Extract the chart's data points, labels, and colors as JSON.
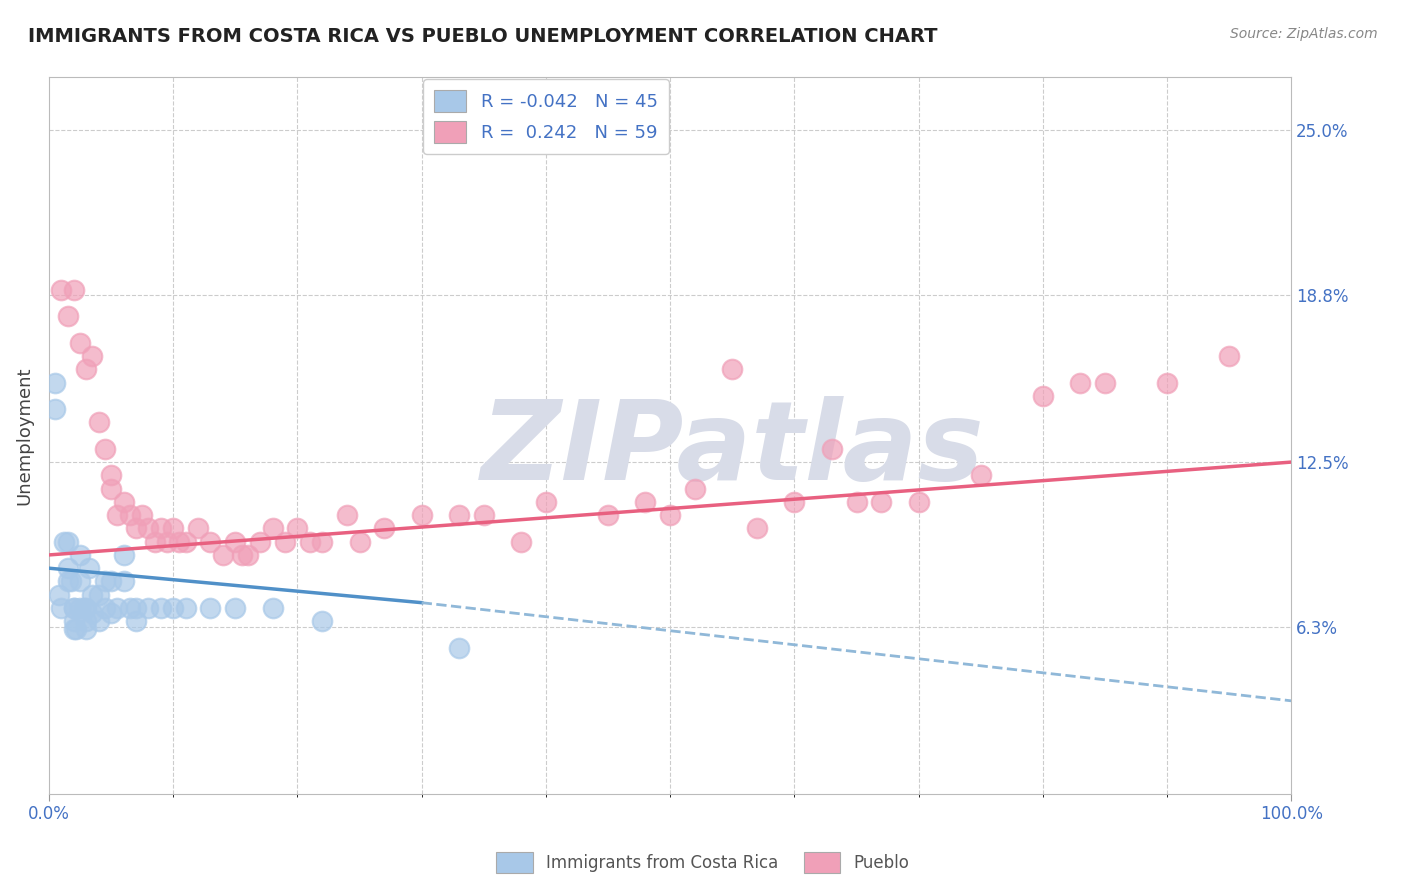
{
  "title": "IMMIGRANTS FROM COSTA RICA VS PUEBLO UNEMPLOYMENT CORRELATION CHART",
  "source_text": "Source: ZipAtlas.com",
  "ylabel": "Unemployment",
  "xlim": [
    0,
    100
  ],
  "ylim": [
    0,
    27
  ],
  "yticks": [
    6.3,
    12.5,
    18.8,
    25.0
  ],
  "ytick_labels": [
    "6.3%",
    "12.5%",
    "18.8%",
    "25.0%"
  ],
  "legend_R1": "R = -0.042",
  "legend_N1": "N = 45",
  "legend_R2": "R =  0.242",
  "legend_N2": "N = 59",
  "legend_label1": "Immigrants from Costa Rica",
  "legend_label2": "Pueblo",
  "color_blue": "#a8c8e8",
  "color_pink": "#f0a0b8",
  "line_blue_solid": "#5090c8",
  "line_blue_dash": "#90b8d8",
  "line_pink": "#e86080",
  "watermark": "ZIPatlas",
  "watermark_color": "#d8dce8",
  "background_color": "#ffffff",
  "grid_color": "#cccccc",
  "blue_points_x": [
    0.5,
    0.5,
    0.8,
    1.0,
    1.2,
    1.5,
    1.5,
    1.5,
    1.8,
    2.0,
    2.0,
    2.0,
    2.0,
    2.2,
    2.5,
    2.5,
    2.5,
    2.8,
    3.0,
    3.0,
    3.0,
    3.2,
    3.5,
    3.5,
    4.0,
    4.0,
    4.5,
    4.5,
    5.0,
    5.0,
    5.5,
    6.0,
    6.0,
    6.5,
    7.0,
    7.0,
    8.0,
    9.0,
    10.0,
    11.0,
    13.0,
    15.0,
    18.0,
    22.0,
    33.0
  ],
  "blue_points_y": [
    15.5,
    14.5,
    7.5,
    7.0,
    9.5,
    9.5,
    8.5,
    8.0,
    8.0,
    7.0,
    7.0,
    6.5,
    6.2,
    6.2,
    9.0,
    8.0,
    7.0,
    7.0,
    7.0,
    6.5,
    6.2,
    8.5,
    7.5,
    6.8,
    7.5,
    6.5,
    8.0,
    7.0,
    8.0,
    6.8,
    7.0,
    9.0,
    8.0,
    7.0,
    7.0,
    6.5,
    7.0,
    7.0,
    7.0,
    7.0,
    7.0,
    7.0,
    7.0,
    6.5,
    5.5
  ],
  "pink_points_x": [
    1.0,
    1.5,
    2.0,
    2.5,
    3.0,
    3.5,
    4.0,
    4.5,
    5.0,
    5.0,
    5.5,
    6.0,
    6.5,
    7.0,
    7.5,
    8.0,
    8.5,
    9.0,
    9.5,
    10.0,
    10.5,
    11.0,
    12.0,
    13.0,
    14.0,
    15.0,
    15.5,
    16.0,
    17.0,
    18.0,
    19.0,
    20.0,
    21.0,
    22.0,
    24.0,
    25.0,
    27.0,
    30.0,
    33.0,
    35.0,
    38.0,
    40.0,
    45.0,
    48.0,
    50.0,
    52.0,
    55.0,
    57.0,
    60.0,
    63.0,
    65.0,
    67.0,
    70.0,
    75.0,
    80.0,
    83.0,
    85.0,
    90.0,
    95.0
  ],
  "pink_points_y": [
    19.0,
    18.0,
    19.0,
    17.0,
    16.0,
    16.5,
    14.0,
    13.0,
    12.0,
    11.5,
    10.5,
    11.0,
    10.5,
    10.0,
    10.5,
    10.0,
    9.5,
    10.0,
    9.5,
    10.0,
    9.5,
    9.5,
    10.0,
    9.5,
    9.0,
    9.5,
    9.0,
    9.0,
    9.5,
    10.0,
    9.5,
    10.0,
    9.5,
    9.5,
    10.5,
    9.5,
    10.0,
    10.5,
    10.5,
    10.5,
    9.5,
    11.0,
    10.5,
    11.0,
    10.5,
    11.5,
    16.0,
    10.0,
    11.0,
    13.0,
    11.0,
    11.0,
    11.0,
    12.0,
    15.0,
    15.5,
    15.5,
    15.5,
    16.5
  ],
  "blue_trend_x0": 0,
  "blue_trend_y0": 8.5,
  "blue_trend_x_solid_end": 30,
  "blue_trend_y_solid_end": 7.2,
  "blue_trend_x1": 100,
  "blue_trend_y1": 3.5,
  "pink_trend_x0": 0,
  "pink_trend_y0": 9.0,
  "pink_trend_x1": 100,
  "pink_trend_y1": 12.5
}
